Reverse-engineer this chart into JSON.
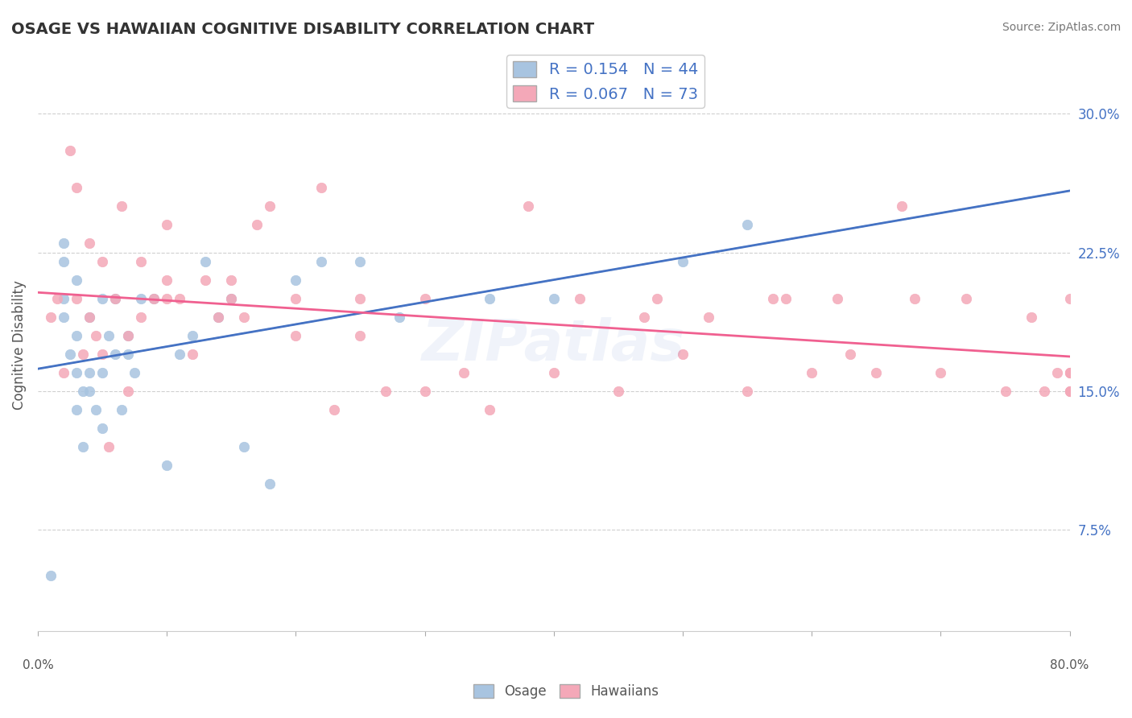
{
  "title": "OSAGE VS HAWAIIAN COGNITIVE DISABILITY CORRELATION CHART",
  "source": "Source: ZipAtlas.com",
  "ylabel": "Cognitive Disability",
  "yticks": [
    0.075,
    0.15,
    0.225,
    0.3
  ],
  "ytick_labels": [
    "7.5%",
    "15.0%",
    "22.5%",
    "30.0%"
  ],
  "xlim": [
    0.0,
    0.8
  ],
  "ylim": [
    0.02,
    0.33
  ],
  "osage_R": 0.154,
  "osage_N": 44,
  "hawaiian_R": 0.067,
  "hawaiian_N": 73,
  "osage_color": "#a8c4e0",
  "hawaiian_color": "#f4a8b8",
  "osage_line_color": "#4472c4",
  "hawaiian_line_color": "#f06090",
  "dashed_line_color": "#aaaaaa",
  "background_color": "#ffffff",
  "grid_color": "#d0d0d0",
  "title_color": "#333333",
  "osage_x": [
    0.01,
    0.02,
    0.02,
    0.02,
    0.02,
    0.025,
    0.03,
    0.03,
    0.03,
    0.03,
    0.035,
    0.035,
    0.04,
    0.04,
    0.04,
    0.045,
    0.05,
    0.05,
    0.05,
    0.055,
    0.06,
    0.06,
    0.065,
    0.07,
    0.07,
    0.075,
    0.08,
    0.09,
    0.1,
    0.11,
    0.12,
    0.13,
    0.14,
    0.15,
    0.16,
    0.18,
    0.2,
    0.22,
    0.25,
    0.28,
    0.35,
    0.4,
    0.5,
    0.55
  ],
  "osage_y": [
    0.05,
    0.19,
    0.2,
    0.22,
    0.23,
    0.17,
    0.14,
    0.16,
    0.18,
    0.21,
    0.12,
    0.15,
    0.15,
    0.16,
    0.19,
    0.14,
    0.13,
    0.16,
    0.2,
    0.18,
    0.17,
    0.2,
    0.14,
    0.17,
    0.18,
    0.16,
    0.2,
    0.2,
    0.11,
    0.17,
    0.18,
    0.22,
    0.19,
    0.2,
    0.12,
    0.1,
    0.21,
    0.22,
    0.22,
    0.19,
    0.2,
    0.2,
    0.22,
    0.24
  ],
  "hawaiian_x": [
    0.01,
    0.015,
    0.02,
    0.025,
    0.03,
    0.03,
    0.035,
    0.04,
    0.04,
    0.045,
    0.05,
    0.05,
    0.055,
    0.06,
    0.065,
    0.07,
    0.07,
    0.08,
    0.08,
    0.09,
    0.1,
    0.1,
    0.1,
    0.11,
    0.12,
    0.13,
    0.14,
    0.15,
    0.15,
    0.16,
    0.17,
    0.18,
    0.2,
    0.2,
    0.22,
    0.23,
    0.25,
    0.25,
    0.27,
    0.3,
    0.3,
    0.33,
    0.35,
    0.38,
    0.4,
    0.42,
    0.45,
    0.47,
    0.48,
    0.5,
    0.52,
    0.55,
    0.57,
    0.58,
    0.6,
    0.62,
    0.63,
    0.65,
    0.67,
    0.68,
    0.7,
    0.72,
    0.75,
    0.77,
    0.78,
    0.79,
    0.8,
    0.8,
    0.8,
    0.8,
    0.8,
    0.8,
    0.8
  ],
  "hawaiian_y": [
    0.19,
    0.2,
    0.16,
    0.28,
    0.2,
    0.26,
    0.17,
    0.19,
    0.23,
    0.18,
    0.17,
    0.22,
    0.12,
    0.2,
    0.25,
    0.15,
    0.18,
    0.19,
    0.22,
    0.2,
    0.2,
    0.21,
    0.24,
    0.2,
    0.17,
    0.21,
    0.19,
    0.2,
    0.21,
    0.19,
    0.24,
    0.25,
    0.18,
    0.2,
    0.26,
    0.14,
    0.18,
    0.2,
    0.15,
    0.15,
    0.2,
    0.16,
    0.14,
    0.25,
    0.16,
    0.2,
    0.15,
    0.19,
    0.2,
    0.17,
    0.19,
    0.15,
    0.2,
    0.2,
    0.16,
    0.2,
    0.17,
    0.16,
    0.25,
    0.2,
    0.16,
    0.2,
    0.15,
    0.19,
    0.15,
    0.16,
    0.2,
    0.15,
    0.16,
    0.15,
    0.16,
    0.15,
    0.16
  ],
  "watermark_text": "ZIPatlas",
  "watermark_color": "#4472c4",
  "watermark_alpha": 0.08,
  "legend_text_color": "#4472c4",
  "axis_label_color": "#555555",
  "bottom_legend_color": "#555555"
}
